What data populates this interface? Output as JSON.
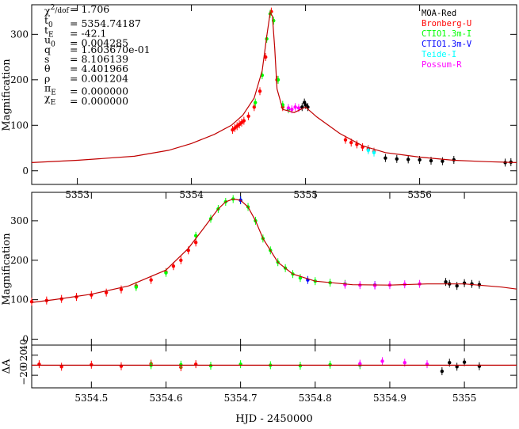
{
  "fit_parameters": [
    {
      "sym": "χ",
      "sup": "2",
      "sub": "/dof",
      "value": "= 1.706"
    },
    {
      "sym": "t",
      "sub": "0",
      "value": "= 5354.74187"
    },
    {
      "sym": "t",
      "sub": "E",
      "value": "= -42.1"
    },
    {
      "sym": "u",
      "sub": "0",
      "value": "= 0.004285"
    },
    {
      "sym": "q",
      "value": "= 1.603670e-01"
    },
    {
      "sym": "s",
      "value": "= 8.106139"
    },
    {
      "sym": "θ",
      "value": "= 4.401966"
    },
    {
      "sym": "ρ",
      "value": "= 0.001204"
    },
    {
      "sym": "π",
      "sub": "E",
      "value": "= 0.000000"
    },
    {
      "sym": "χ",
      "sub": "E",
      "value": "= 0.000000"
    }
  ],
  "legend": [
    {
      "name": "MOA-Red",
      "color": "#000000"
    },
    {
      "name": "Bronberg-U",
      "color": "#ff0000"
    },
    {
      "name": "CTIO1.3m-I",
      "color": "#00ff00"
    },
    {
      "name": "CTIO1.3m-V",
      "color": "#0000ff"
    },
    {
      "name": "Teide-I",
      "color": "#00ffff"
    },
    {
      "name": "Possum-R",
      "color": "#ff00ff"
    }
  ],
  "model_color": "#c00000",
  "chart_data": [
    {
      "type": "scatter",
      "title": "",
      "xlabel": "",
      "ylabel": "Magnification",
      "xlim": [
        5352.6,
        5356.85
      ],
      "ylim": [
        -30,
        365
      ],
      "xticks": [
        5353,
        5354,
        5355,
        5356
      ],
      "yticks": [
        0,
        100,
        200,
        300
      ],
      "model_curve": {
        "x": [
          5352.6,
          5353.0,
          5353.5,
          5353.8,
          5354.0,
          5354.2,
          5354.35,
          5354.45,
          5354.55,
          5354.62,
          5354.66,
          5354.69,
          5354.71,
          5354.73,
          5354.75,
          5354.8,
          5354.9,
          5355.0,
          5355.1,
          5355.3,
          5355.5,
          5355.7,
          5356.0,
          5356.3,
          5356.6,
          5356.85
        ],
        "y": [
          18,
          23,
          32,
          45,
          60,
          80,
          100,
          122,
          160,
          220,
          295,
          348,
          340,
          270,
          180,
          135,
          128,
          140,
          118,
          82,
          55,
          40,
          30,
          23,
          20,
          18
        ]
      },
      "series": [
        {
          "name": "Bronberg-U",
          "x": [
            5354.36,
            5354.38,
            5354.4,
            5354.42,
            5354.44,
            5354.46,
            5354.5,
            5354.55,
            5354.6,
            5354.65,
            5354.7,
            5354.75,
            5354.8,
            5355.35,
            5355.4,
            5355.45,
            5355.5,
            5355.55,
            5355.6
          ],
          "y": [
            90,
            94,
            98,
            102,
            106,
            110,
            120,
            140,
            175,
            250,
            350,
            200,
            140,
            68,
            62,
            58,
            52,
            48,
            42
          ]
        },
        {
          "name": "CTIO1.3m-I",
          "x": [
            5354.56,
            5354.62,
            5354.66,
            5354.69,
            5354.72,
            5354.76,
            5354.8,
            5354.85
          ],
          "y": [
            150,
            210,
            290,
            345,
            330,
            200,
            145,
            135
          ]
        },
        {
          "name": "Possum-R",
          "x": [
            5354.85,
            5354.88,
            5354.91,
            5354.94
          ],
          "y": [
            138,
            135,
            140,
            138
          ]
        },
        {
          "name": "Teide-I",
          "x": [
            5355.55,
            5355.6
          ],
          "y": [
            45,
            40
          ]
        },
        {
          "name": "MOA-Red",
          "x": [
            5354.97,
            5354.99,
            5355.0,
            5355.02,
            5355.7,
            5355.8,
            5355.9,
            5356.0,
            5356.1,
            5356.2,
            5356.3,
            5356.75,
            5356.8
          ],
          "y": [
            140,
            150,
            145,
            140,
            28,
            26,
            25,
            24,
            22,
            21,
            24,
            18,
            19
          ]
        }
      ]
    },
    {
      "type": "scatter",
      "title": "",
      "xlabel": "",
      "ylabel": "Magnification",
      "xlim": [
        5354.42,
        5355.07
      ],
      "ylim": [
        -15,
        372
      ],
      "xticks": [],
      "yticks": [
        0,
        100,
        200,
        300
      ],
      "model_curve": {
        "x": [
          5354.42,
          5354.45,
          5354.5,
          5354.55,
          5354.6,
          5354.63,
          5354.65,
          5354.67,
          5354.68,
          5354.69,
          5354.7,
          5354.71,
          5354.72,
          5354.73,
          5354.75,
          5354.77,
          5354.8,
          5354.85,
          5354.9,
          5354.95,
          5355.0,
          5355.05,
          5355.07
        ],
        "y": [
          93,
          100,
          114,
          135,
          175,
          230,
          280,
          330,
          348,
          355,
          352,
          335,
          300,
          255,
          195,
          165,
          147,
          138,
          137,
          140,
          140,
          132,
          127
        ]
      },
      "series": [
        {
          "name": "Bronberg-U",
          "x": [
            5354.42,
            5354.44,
            5354.46,
            5354.48,
            5354.5,
            5354.52,
            5354.54,
            5354.56,
            5354.58,
            5354.6,
            5354.61,
            5354.62,
            5354.63,
            5354.64
          ],
          "y": [
            95,
            98,
            102,
            107,
            112,
            118,
            126,
            135,
            150,
            170,
            185,
            200,
            225,
            245
          ]
        },
        {
          "name": "CTIO1.3m-I",
          "x": [
            5354.56,
            5354.6,
            5354.64,
            5354.66,
            5354.67,
            5354.68,
            5354.69,
            5354.7,
            5354.71,
            5354.72,
            5354.73,
            5354.74,
            5354.75,
            5354.76,
            5354.77,
            5354.78,
            5354.8,
            5354.82,
            5354.84
          ],
          "y": [
            132,
            168,
            262,
            305,
            330,
            348,
            355,
            352,
            335,
            300,
            255,
            225,
            195,
            180,
            165,
            155,
            147,
            143,
            140
          ]
        },
        {
          "name": "CTIO1.3m-V",
          "x": [
            5354.7,
            5354.79,
            5354.88
          ],
          "y": [
            352,
            150,
            137
          ]
        },
        {
          "name": "Possum-R",
          "x": [
            5354.84,
            5354.86,
            5354.88,
            5354.9,
            5354.92,
            5354.94
          ],
          "y": [
            138,
            137,
            136,
            137,
            139,
            140
          ]
        },
        {
          "name": "MOA-Red",
          "x": [
            5354.975,
            5354.98,
            5354.99,
            5355.0,
            5355.01,
            5355.02
          ],
          "y": [
            145,
            140,
            135,
            142,
            140,
            138
          ]
        }
      ]
    },
    {
      "type": "scatter",
      "title": "",
      "xlabel": "HJD - 2450000",
      "ylabel": "ΔA",
      "xlim": [
        5354.42,
        5355.07
      ],
      "ylim": [
        -45,
        40
      ],
      "xticks": [
        5354.5,
        5354.6,
        5354.7,
        5354.8,
        5354.9,
        5355
      ],
      "xtick_labels": [
        "5354.5",
        "5354.6",
        "5354.7",
        "5354.8",
        "5354.9",
        "5355"
      ],
      "yticks": [
        -20,
        0,
        20,
        40
      ],
      "ytick_labels": [
        "−20",
        "0",
        "20",
        "40"
      ],
      "model_curve": {
        "x": [
          5354.42,
          5355.07
        ],
        "y": [
          0,
          0
        ]
      },
      "series": [
        {
          "name": "Bronberg-U",
          "x": [
            5354.43,
            5354.46,
            5354.5,
            5354.54,
            5354.58,
            5354.62,
            5354.64
          ],
          "y": [
            2,
            -3,
            1,
            -2,
            3,
            -4,
            2
          ]
        },
        {
          "name": "CTIO1.3m-I",
          "x": [
            5354.58,
            5354.62,
            5354.66,
            5354.7,
            5354.74,
            5354.78,
            5354.82,
            5354.86
          ],
          "y": [
            0,
            1,
            -1,
            2,
            0,
            -1,
            1,
            0
          ]
        },
        {
          "name": "Possum-R",
          "x": [
            5354.86,
            5354.89,
            5354.92,
            5354.95
          ],
          "y": [
            3,
            8,
            5,
            2
          ]
        },
        {
          "name": "MOA-Red",
          "x": [
            5354.97,
            5354.98,
            5354.99,
            5355.0,
            5355.02
          ],
          "y": [
            -12,
            5,
            -3,
            6,
            -2
          ]
        }
      ]
    }
  ]
}
